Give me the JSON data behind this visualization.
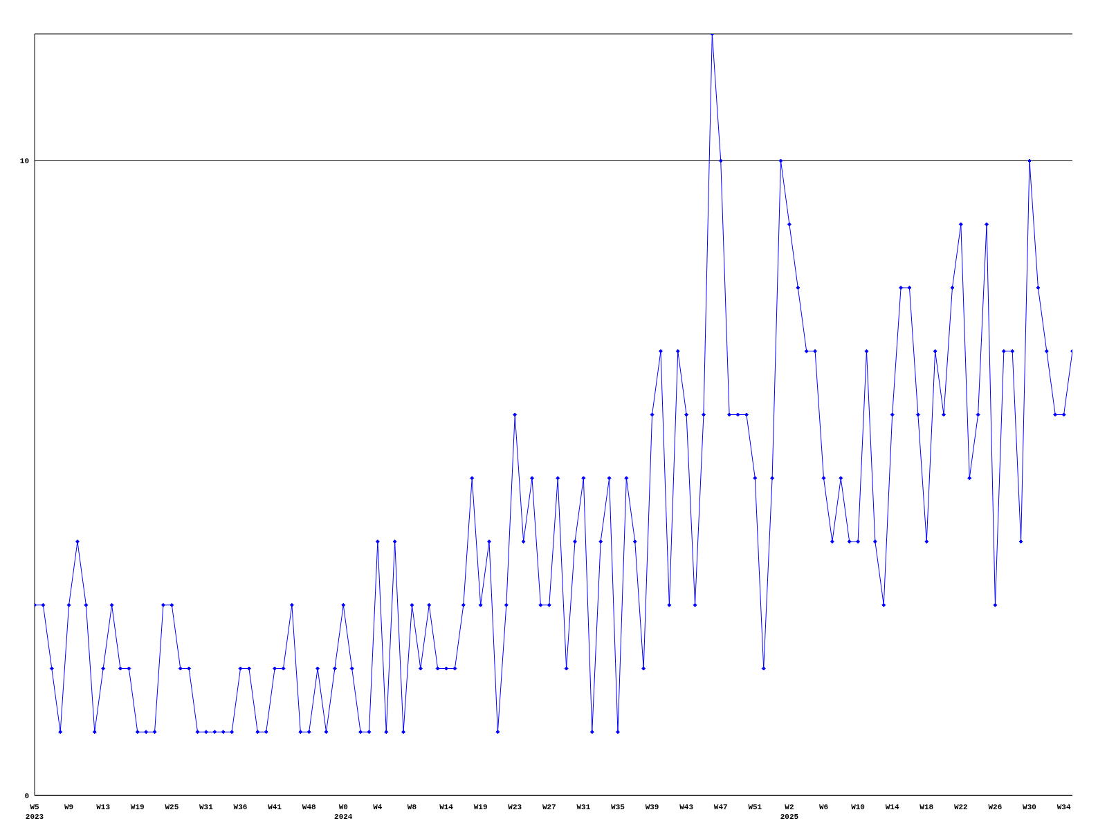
{
  "chart_data": {
    "type": "line",
    "categories": [
      "W5\n2023",
      null,
      null,
      null,
      "W9",
      null,
      null,
      null,
      "W13",
      null,
      null,
      null,
      "W19",
      null,
      null,
      null,
      "W25",
      null,
      null,
      null,
      "W31",
      null,
      null,
      null,
      "W36",
      null,
      null,
      null,
      "W41",
      null,
      null,
      null,
      "W48",
      null,
      null,
      null,
      "W0\n2024",
      null,
      null,
      null,
      "W4",
      null,
      null,
      null,
      "W8",
      null,
      null,
      null,
      "W14",
      null,
      null,
      null,
      "W19",
      null,
      null,
      null,
      "W23",
      null,
      null,
      null,
      "W27",
      null,
      null,
      null,
      "W31",
      null,
      null,
      null,
      "W35",
      null,
      null,
      null,
      "W39",
      null,
      null,
      null,
      "W43",
      null,
      null,
      null,
      "W47",
      null,
      null,
      null,
      "W51",
      null,
      null,
      null,
      "W2\n2025",
      null,
      null,
      null,
      "W6",
      null,
      null,
      null,
      "W10",
      null,
      null,
      null,
      "W14",
      null,
      null,
      null,
      "W18",
      null,
      null,
      null,
      "W22",
      null,
      null,
      null,
      "W26",
      null,
      null,
      null,
      "W30",
      null,
      null,
      null,
      "W34",
      null
    ],
    "series": [
      {
        "color": "#0000ff",
        "values": [
          3,
          3,
          2,
          1,
          3,
          4,
          3,
          1,
          2,
          3,
          2,
          2,
          1,
          1,
          1,
          3,
          3,
          2,
          2,
          1,
          1,
          1,
          1,
          1,
          2,
          2,
          1,
          1,
          2,
          2,
          3,
          1,
          1,
          2,
          1,
          2,
          3,
          2,
          1,
          1,
          4,
          1,
          4,
          1,
          3,
          2,
          3,
          2,
          2,
          2,
          3,
          5,
          3,
          4,
          1,
          3,
          6,
          4,
          5,
          3,
          3,
          5,
          2,
          4,
          5,
          1,
          4,
          5,
          1,
          5,
          4,
          2,
          6,
          7,
          3,
          7,
          6,
          3,
          6,
          12,
          10,
          6,
          6,
          6,
          5,
          2,
          5,
          10,
          9,
          8,
          7,
          7,
          5,
          4,
          5,
          4,
          4,
          7,
          4,
          3,
          6,
          8,
          8,
          6,
          4,
          7,
          6,
          8,
          9,
          5,
          6,
          9,
          3,
          7,
          7,
          4,
          10,
          8,
          7,
          6,
          6,
          7
        ]
      }
    ],
    "ylim": [
      0,
      12
    ],
    "yticks": [
      0,
      10
    ],
    "grid": "y",
    "marker": "diamond",
    "line_style": "solid"
  }
}
